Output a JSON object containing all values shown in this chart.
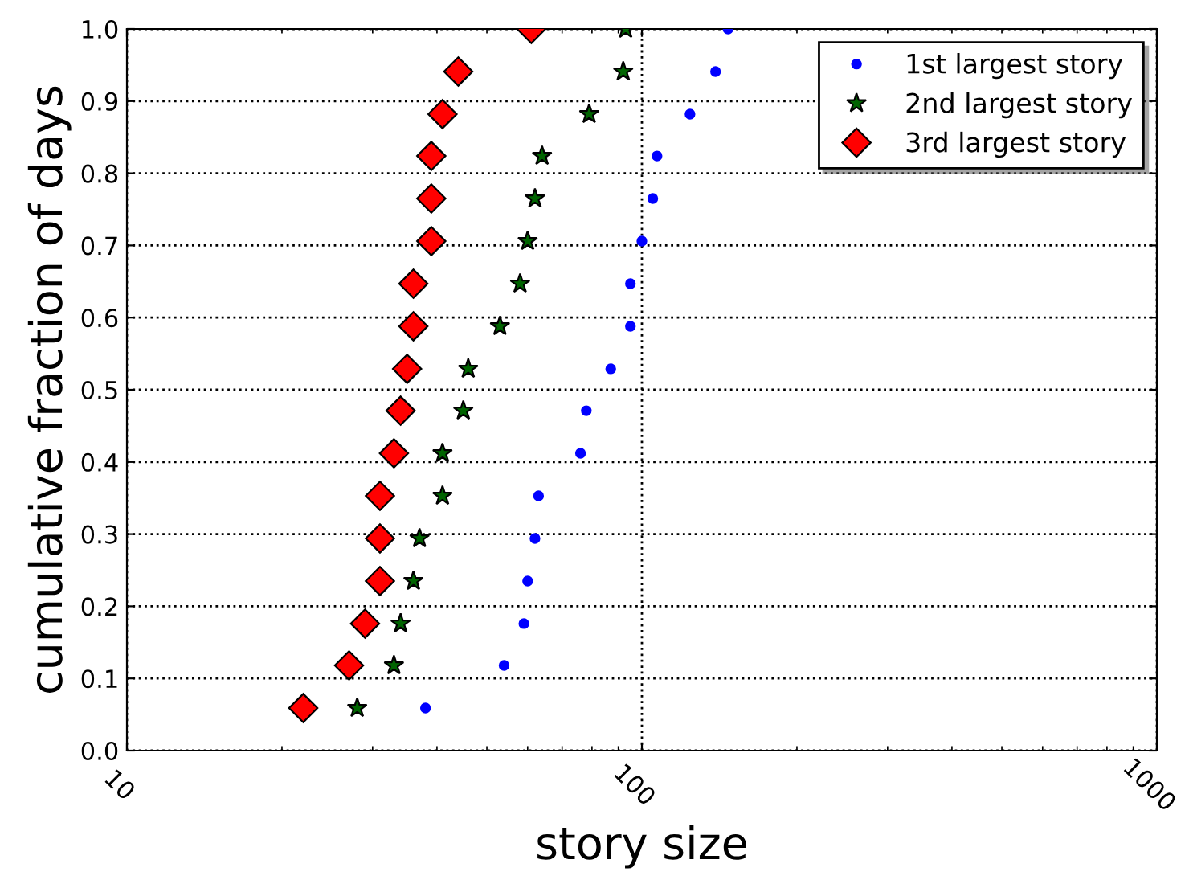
{
  "chart_data": {
    "type": "scatter",
    "xlabel": "story size",
    "ylabel": "cumulative fraction of days",
    "log": "x",
    "xlim": [
      10,
      1000
    ],
    "xticks": [
      10,
      100,
      1000
    ],
    "ylim": [
      0,
      1.0
    ],
    "yticks": [
      {
        "value": 0,
        "label": "0.0"
      },
      0.1,
      0.2,
      0.3,
      0.4,
      0.5,
      0.6,
      0.7,
      0.8,
      0.9,
      {
        "value": 1.0,
        "label": "1.0"
      }
    ],
    "grid": true,
    "legend": "top right",
    "series": [
      {
        "name": "1st largest story",
        "color": "#0000ff",
        "marker": "circle",
        "x": [
          38,
          54,
          59,
          60,
          62,
          63,
          76,
          78,
          87,
          95,
          95,
          100,
          105,
          107,
          124,
          139,
          147
        ],
        "values": [
          0.059,
          0.118,
          0.176,
          0.235,
          0.294,
          0.353,
          0.412,
          0.471,
          0.529,
          0.588,
          0.647,
          0.706,
          0.765,
          0.824,
          0.882,
          0.941,
          1.0
        ]
      },
      {
        "name": "2nd largest story",
        "color": "#006400",
        "marker": "star",
        "x": [
          28,
          33,
          34,
          36,
          37,
          41,
          41,
          45,
          46,
          53,
          58,
          60,
          62,
          64,
          79,
          92,
          93
        ],
        "values": [
          0.059,
          0.118,
          0.176,
          0.235,
          0.294,
          0.353,
          0.412,
          0.471,
          0.529,
          0.588,
          0.647,
          0.706,
          0.765,
          0.824,
          0.882,
          0.941,
          1.0
        ]
      },
      {
        "name": "3rd largest story",
        "color": "#ff0000",
        "marker": "diamond",
        "x": [
          22,
          27,
          29,
          31,
          31,
          31,
          33,
          34,
          35,
          36,
          36,
          39,
          39,
          39,
          41,
          44,
          61
        ],
        "values": [
          0.059,
          0.118,
          0.176,
          0.235,
          0.294,
          0.353,
          0.412,
          0.471,
          0.529,
          0.588,
          0.647,
          0.706,
          0.765,
          0.824,
          0.882,
          0.941,
          1.0
        ]
      }
    ]
  }
}
